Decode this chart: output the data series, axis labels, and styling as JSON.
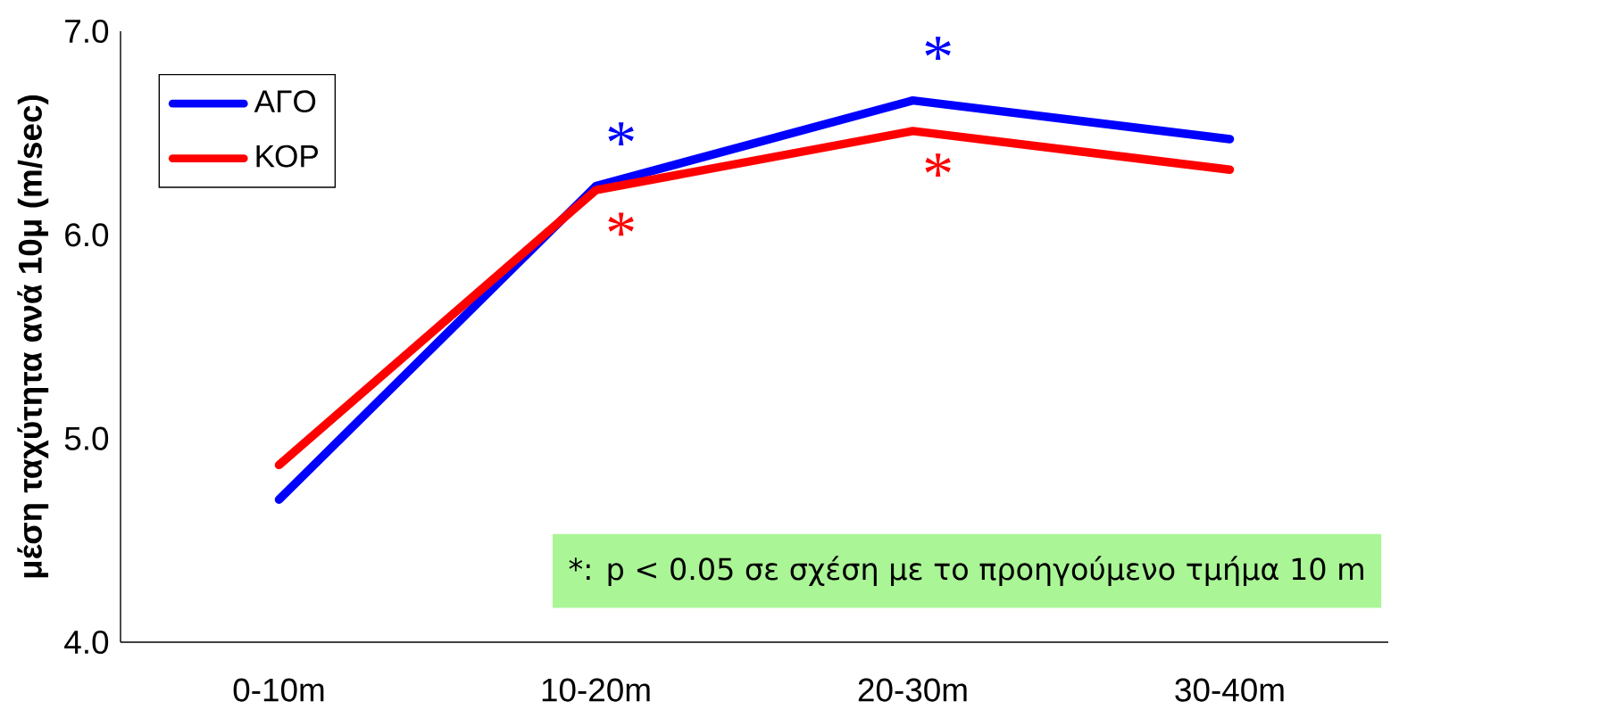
{
  "chart_data": {
    "type": "line",
    "ylabel": "μέση ταχύτητα ανά 10μ (m/sec)",
    "categories": [
      "0-10m",
      "10-20m",
      "20-30m",
      "30-40m"
    ],
    "series": [
      {
        "name": "ΑΓΟ",
        "color": "#0000ff",
        "values": [
          4.7,
          6.24,
          6.66,
          6.47
        ]
      },
      {
        "name": "ΚΟΡ",
        "color": "#ff0000",
        "values": [
          4.87,
          6.22,
          6.51,
          6.32
        ]
      }
    ],
    "ylim": [
      4,
      7
    ],
    "yticks": [
      {
        "value": 4,
        "label": "4.0"
      },
      {
        "value": 5,
        "label": "5.0"
      },
      {
        "value": 6,
        "label": "6.0"
      },
      {
        "value": 7,
        "label": "7.0"
      }
    ],
    "legend": "top left",
    "grid": false,
    "marker": "none",
    "line_style": "solid",
    "annotations": [
      "*",
      "*",
      "*",
      "*",
      "*: p < 0.05 σε σχέση με το προηγούμενο τμήμα 10 m"
    ]
  }
}
